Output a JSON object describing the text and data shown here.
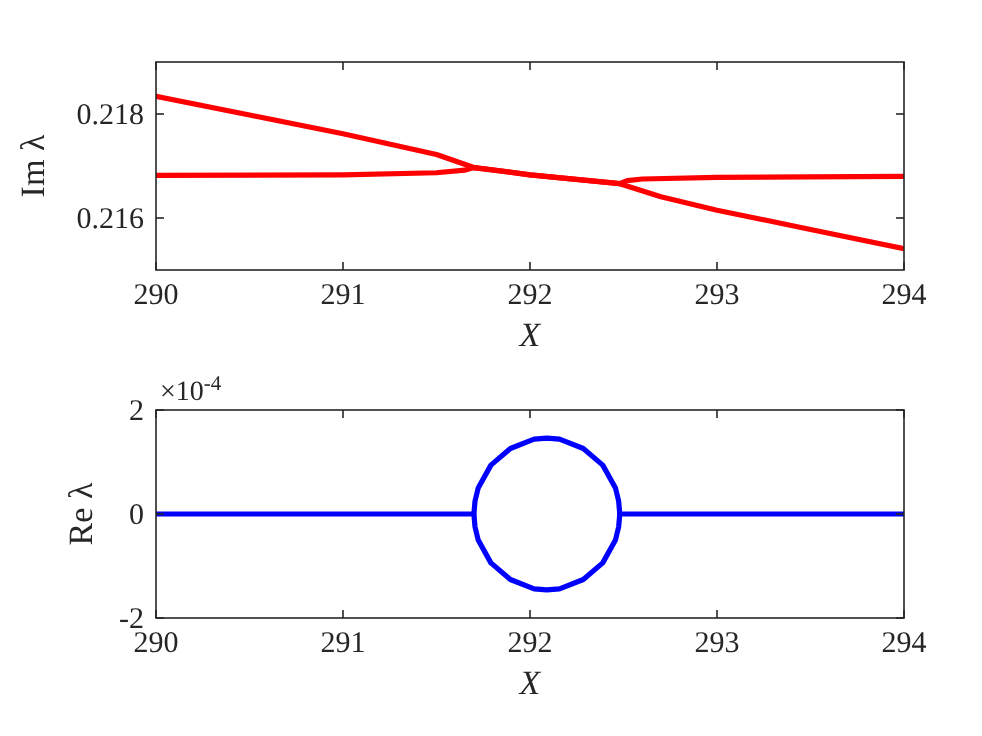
{
  "chart_data": [
    {
      "type": "line",
      "xlabel": "X",
      "ylabel": "Im λ",
      "xlim": [
        290,
        294
      ],
      "xticks": [
        290,
        291,
        292,
        293,
        294
      ],
      "ylim": [
        0.215,
        0.219
      ],
      "yticks": [
        0.216,
        0.218
      ],
      "series": [
        {
          "color": "#ff0000",
          "x": [
            290,
            290.5,
            291,
            291.5,
            291.7,
            292,
            292.48,
            292.7,
            293,
            293.5,
            294
          ],
          "values": [
            0.21834,
            0.21798,
            0.21762,
            0.21722,
            0.21697,
            0.21683,
            0.21666,
            0.21641,
            0.21615,
            0.21578,
            0.21541
          ]
        },
        {
          "color": "#ff0000",
          "x": [
            290,
            291,
            291.5,
            291.65,
            291.7,
            292,
            292.48,
            292.52,
            292.6,
            293,
            294
          ],
          "values": [
            0.21682,
            0.21683,
            0.21687,
            0.21692,
            0.21697,
            0.21683,
            0.21666,
            0.21672,
            0.21675,
            0.21678,
            0.2168
          ]
        }
      ]
    },
    {
      "type": "line",
      "xlabel": "X",
      "ylabel": "Re λ",
      "xlim": [
        290,
        294
      ],
      "xticks": [
        290,
        291,
        292,
        293,
        294
      ],
      "ylim": [
        -2,
        2
      ],
      "yticks": [
        -2,
        0,
        2
      ],
      "annotations": [
        "×10$^{-4}$"
      ],
      "series": [
        {
          "color": "#0000ff",
          "x": [
            290,
            291,
            291.7,
            291.706,
            291.723,
            291.791,
            291.895,
            292.022,
            292.09,
            292.158,
            292.285,
            292.389,
            292.457,
            292.474,
            292.48,
            293,
            294
          ],
          "values": [
            0,
            0,
            0,
            0.25,
            0.5,
            0.94,
            1.26,
            1.44,
            1.46,
            1.44,
            1.26,
            0.94,
            0.5,
            0.25,
            0,
            0,
            0
          ]
        },
        {
          "color": "#0000ff",
          "x": [
            291.7,
            291.706,
            291.723,
            291.791,
            291.895,
            292.022,
            292.09,
            292.158,
            292.285,
            292.389,
            292.457,
            292.474,
            292.48
          ],
          "values": [
            0,
            -0.25,
            -0.5,
            -0.94,
            -1.26,
            -1.44,
            -1.46,
            -1.44,
            -1.26,
            -0.94,
            -0.5,
            -0.25,
            0
          ]
        }
      ]
    }
  ]
}
